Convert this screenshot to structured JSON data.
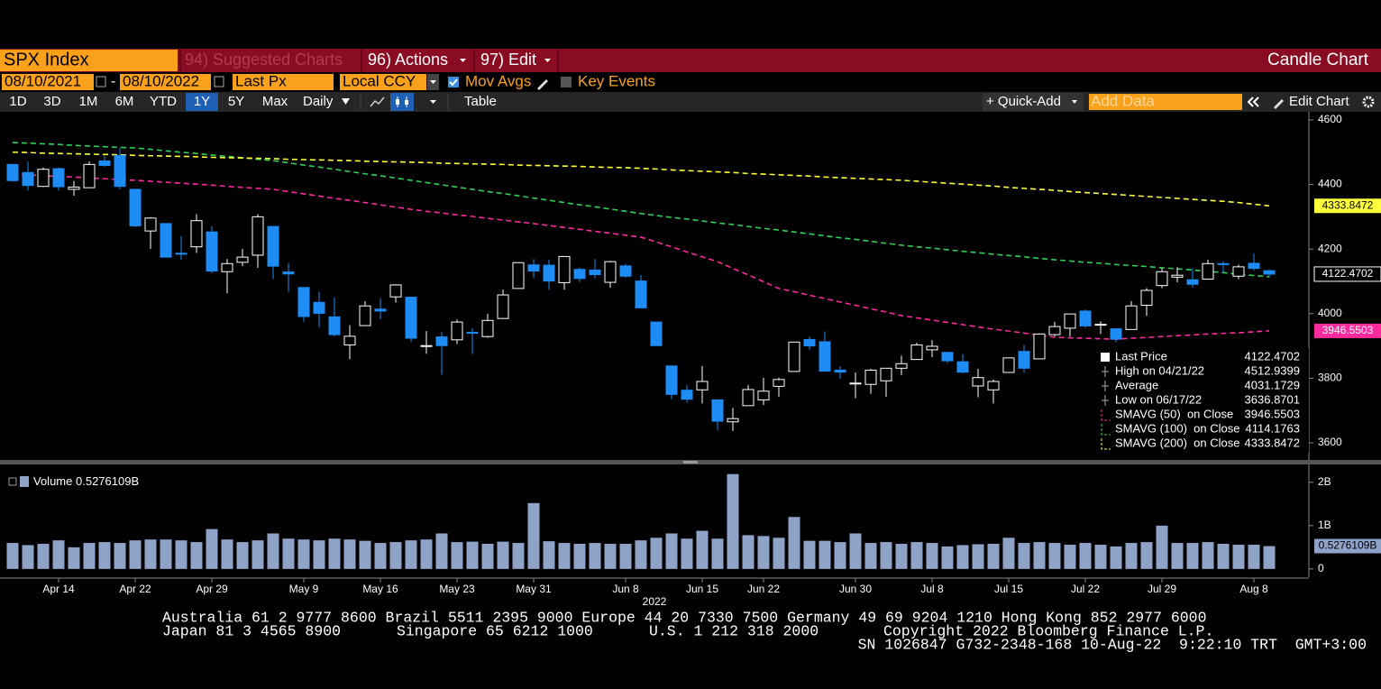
{
  "ui": {
    "security": "SPX Index",
    "menu": [
      "94) Suggested Charts",
      "96) Actions",
      "97) Edit"
    ],
    "chart_kind": "Candle Chart",
    "start_date": "08/10/2021",
    "end_date": "08/10/2022",
    "field": "Last Px",
    "currency": "Local CCY",
    "mov_avgs": {
      "label": "Mov Avgs",
      "checked": true
    },
    "key_events": {
      "label": "Key Events",
      "checked": false
    },
    "periods": [
      "1D",
      "3D",
      "1M",
      "6M",
      "YTD",
      "1Y",
      "5Y",
      "Max"
    ],
    "active_period": "1Y",
    "frequency": "Daily",
    "table": "Table",
    "quick_add": "+ Quick-Add",
    "add_data": "Add Data",
    "edit_chart": "Edit Chart"
  },
  "chart_data": {
    "type": "candlestick",
    "categories": [
      null,
      null,
      null,
      "Apr 14",
      null,
      null,
      null,
      null,
      "Apr 22",
      null,
      null,
      null,
      null,
      "Apr 29",
      null,
      null,
      null,
      null,
      null,
      "May 9",
      null,
      null,
      null,
      null,
      "May 16",
      null,
      null,
      null,
      null,
      "May 23",
      null,
      null,
      null,
      null,
      "May 31",
      null,
      null,
      null,
      null,
      null,
      "Jun 8",
      null,
      null,
      null,
      null,
      "Jun 15",
      null,
      null,
      null,
      "Jun 22",
      null,
      null,
      null,
      null,
      null,
      "Jun 30",
      null,
      null,
      null,
      null,
      "Jul 8",
      null,
      null,
      null,
      null,
      "Jul 15",
      null,
      null,
      null,
      null,
      "Jul 22",
      null,
      null,
      null,
      null,
      "Jul 29",
      null,
      null,
      null,
      null,
      null,
      "Aug 8",
      null
    ],
    "year_label": "2022",
    "open": [
      4462,
      4437,
      4394,
      4449,
      4385,
      4390,
      4473,
      4490,
      4385,
      4256,
      4279,
      4187,
      4207,
      4253,
      4130,
      4159,
      4181,
      4270,
      4129,
      4081,
      4035,
      3990,
      3903,
      3963,
      4014,
      4052,
      4051,
      3900,
      3928,
      3919,
      3942,
      3929,
      3985,
      4078,
      4151,
      4150,
      4096,
      4137,
      4135,
      4097,
      4148,
      4101,
      3974,
      3838,
      3763,
      3764,
      3733,
      3665,
      3715,
      3733,
      3775,
      3821,
      3920,
      3913,
      3825,
      3785,
      3781,
      3792,
      3831,
      3858,
      3888,
      3880,
      3851,
      3776,
      3764,
      3818,
      3883,
      3860,
      3935,
      3955,
      4008,
      3966,
      3953,
      3951,
      4026,
      4087,
      4113,
      4105,
      4107,
      4155,
      4116,
      4156,
      4133
    ],
    "high": [
      4464,
      4471,
      4453,
      4453,
      4411,
      4471,
      4489,
      4512.9399,
      4386,
      4299,
      4279,
      4240,
      4308,
      4270,
      4169,
      4200,
      4308,
      4270,
      4157,
      4081,
      4068,
      4050,
      3964,
      4039,
      4047,
      4091,
      4051,
      3946,
      3943,
      3982,
      3955,
      3999,
      4075,
      4158,
      4169,
      4167,
      4178,
      4143,
      4169,
      4164,
      4154,
      4120,
      3974,
      3838,
      3778,
      3838,
      3733,
      3708,
      3779,
      3801,
      3802,
      3913,
      3928,
      3945,
      3837,
      3818,
      3829,
      3832,
      3870,
      3910,
      3918,
      3880,
      3874,
      3829,
      3796,
      3863,
      3903,
      3939,
      3975,
      3999,
      4013,
      3976,
      3953,
      4039,
      4079,
      4140,
      4144,
      4140,
      4167,
      4162,
      4152,
      4187,
      4137
    ],
    "low": [
      4408,
      4381,
      4392,
      4381,
      4365,
      4390,
      4455,
      4385,
      4268,
      4201,
      4175,
      4167,
      4188,
      4125,
      4063,
      4147,
      4142,
      4107,
      4068,
      3975,
      3958,
      3929,
      3859,
      3963,
      3983,
      4034,
      3912,
      3876,
      3811,
      3906,
      3875,
      3925,
      3985,
      4078,
      4110,
      4074,
      4074,
      4098,
      4110,
      4080,
      4111,
      4017,
      3900,
      3735,
      3724,
      3722,
      3639,
      3636.8701,
      3715,
      3717,
      3743,
      3821,
      3889,
      3821,
      3799,
      3738,
      3752,
      3742,
      3809,
      3858,
      3865,
      3847,
      3815,
      3741,
      3722,
      3818,
      3817,
      3860,
      3930,
      3929,
      3956,
      3937,
      3911,
      3951,
      3993,
      4079,
      4097,
      4080,
      4107,
      4128,
      4107,
      4133,
      4112
    ],
    "close": [
      4412,
      4397,
      4447,
      4393,
      4392,
      4462,
      4459,
      4394,
      4272,
      4296,
      4175,
      4184,
      4288,
      4132,
      4155,
      4175,
      4300,
      4147,
      4123,
      3991,
      4001,
      3935,
      3930,
      4024,
      4008,
      4089,
      3924,
      3901,
      3901,
      3974,
      3941,
      3979,
      4058,
      4158,
      4132,
      4101,
      4177,
      4109,
      4121,
      4161,
      4116,
      4018,
      3901,
      3750,
      3735,
      3790,
      3667,
      3675,
      3765,
      3760,
      3796,
      3912,
      3900,
      3822,
      3819,
      3785,
      3825,
      3831,
      3845,
      3903,
      3899,
      3854,
      3819,
      3802,
      3790,
      3863,
      3831,
      3937,
      3960,
      3999,
      3962,
      3967,
      3921,
      4024,
      4072,
      4130,
      4119,
      4091,
      4155,
      4152,
      4145,
      4140,
      4122.4702
    ],
    "up_color": "#ffffff",
    "down_color": "#1e8cf5",
    "ylim": [
      3547,
      4625
    ],
    "yticks": [
      3600,
      3800,
      4000,
      4200,
      4400,
      4600
    ],
    "stats": {
      "last_label": "Last Price",
      "high_label": "High on 04/21/22",
      "average_label": "Average",
      "average": 4031.1729,
      "low_label": "Low on 06/17/22"
    },
    "moving_averages": [
      {
        "name": "SMAVG (50)  on Close",
        "color": "#ff2a9d",
        "badge": true,
        "badge_text": "#ffffff",
        "values": [
          4432,
          4430,
          4427,
          4425,
          4423,
          4420,
          4418,
          4415,
          4413,
          4410,
          4407,
          4404,
          4401,
          4398,
          4394,
          4391,
          4388,
          4385,
          4378,
          4371,
          4364,
          4357,
          4351,
          4344,
          4337,
          4330,
          4323,
          4317,
          4312,
          4306,
          4301,
          4295,
          4290,
          4284,
          4279,
          4273,
          4267,
          4261,
          4255,
          4249,
          4243,
          4237,
          4222,
          4207,
          4191,
          4176,
          4161,
          4140,
          4120,
          4099,
          4078,
          4068,
          4057,
          4047,
          4036,
          4026,
          4015,
          4005,
          3994,
          3987,
          3980,
          3973,
          3966,
          3959,
          3952,
          3946,
          3940,
          3933,
          3927,
          3925,
          3924,
          3922,
          3921,
          3924,
          3926,
          3929,
          3932,
          3934,
          3937,
          3939,
          3941,
          3944,
          3946.5503
        ]
      },
      {
        "name": "SMAVG (100)  on Close",
        "color": "#2fd05a",
        "badge": false,
        "badge_text": "#000000",
        "values": [
          4530,
          4528,
          4526,
          4524,
          4521,
          4519,
          4517,
          4515,
          4513,
          4509,
          4504,
          4500,
          4496,
          4491,
          4487,
          4483,
          4478,
          4474,
          4467,
          4460,
          4454,
          4447,
          4440,
          4433,
          4427,
          4420,
          4413,
          4406,
          4399,
          4392,
          4385,
          4378,
          4372,
          4365,
          4358,
          4351,
          4344,
          4337,
          4331,
          4324,
          4317,
          4310,
          4304,
          4298,
          4293,
          4287,
          4281,
          4276,
          4270,
          4264,
          4259,
          4253,
          4247,
          4241,
          4235,
          4230,
          4224,
          4218,
          4212,
          4207,
          4203,
          4198,
          4193,
          4189,
          4184,
          4180,
          4176,
          4171,
          4167,
          4163,
          4159,
          4156,
          4152,
          4149,
          4146,
          4142,
          4139,
          4135,
          4131,
          4127,
          4122,
          4118,
          4114.1763
        ]
      },
      {
        "name": "SMAVG (200)  on Close",
        "color": "#ffff3a",
        "badge": true,
        "badge_text": "#000000",
        "values": [
          4500,
          4499,
          4497,
          4496,
          4495,
          4494,
          4493,
          4492,
          4490,
          4489,
          4488,
          4487,
          4486,
          4484,
          4483,
          4482,
          4481,
          4480,
          4478,
          4477,
          4476,
          4475,
          4474,
          4472,
          4471,
          4470,
          4469,
          4468,
          4466,
          4465,
          4464,
          4463,
          4462,
          4460,
          4459,
          4458,
          4457,
          4456,
          4454,
          4453,
          4452,
          4450,
          4448,
          4445,
          4443,
          4441,
          4439,
          4437,
          4434,
          4432,
          4430,
          4428,
          4426,
          4423,
          4421,
          4419,
          4417,
          4415,
          4413,
          4410,
          4407,
          4404,
          4401,
          4398,
          4395,
          4391,
          4388,
          4385,
          4382,
          4378,
          4375,
          4372,
          4369,
          4366,
          4363,
          4360,
          4357,
          4354,
          4351,
          4348,
          4344,
          4339,
          4333.8472
        ]
      }
    ],
    "volume": {
      "name": "Volume",
      "color": "#8fa3c9",
      "values": [
        0.6,
        0.55,
        0.58,
        0.66,
        0.5,
        0.6,
        0.62,
        0.6,
        0.66,
        0.68,
        0.68,
        0.66,
        0.62,
        0.92,
        0.68,
        0.62,
        0.66,
        0.82,
        0.7,
        0.68,
        0.66,
        0.7,
        0.68,
        0.65,
        0.6,
        0.62,
        0.66,
        0.68,
        0.82,
        0.62,
        0.63,
        0.58,
        0.63,
        0.6,
        1.52,
        0.64,
        0.6,
        0.58,
        0.6,
        0.58,
        0.58,
        0.66,
        0.72,
        0.82,
        0.7,
        0.88,
        0.7,
        2.19,
        0.78,
        0.76,
        0.72,
        1.2,
        0.65,
        0.65,
        0.62,
        0.82,
        0.6,
        0.62,
        0.58,
        0.62,
        0.6,
        0.52,
        0.55,
        0.57,
        0.58,
        0.72,
        0.6,
        0.62,
        0.6,
        0.56,
        0.6,
        0.56,
        0.52,
        0.6,
        0.62,
        1.0,
        0.6,
        0.6,
        0.62,
        0.58,
        0.56,
        0.56,
        0.5276109
      ],
      "last_value_label": "0.5276109B",
      "ylim": [
        -0.19,
        2.35
      ],
      "yticks": [
        0,
        {
          "value": 1,
          "label": "1B"
        },
        {
          "value": 2,
          "label": "2B"
        }
      ]
    }
  },
  "footer": {
    "line1": "Australia 61 2 9777 8600 Brazil 5511 2395 9000 Europe 44 20 7330 7500 Germany 49 69 9204 1210 Hong Kong 852 2977 6000",
    "line2": [
      "Japan 81 3 4565 8900",
      "Singapore 65 6212 1000",
      "U.S. 1 212 318 2000",
      "Copyright 2022 Bloomberg Finance L.P."
    ],
    "line3": "SN 1026847 G732-2348-168 10-Aug-22  9:22:10 TRT  GMT+3:00"
  }
}
